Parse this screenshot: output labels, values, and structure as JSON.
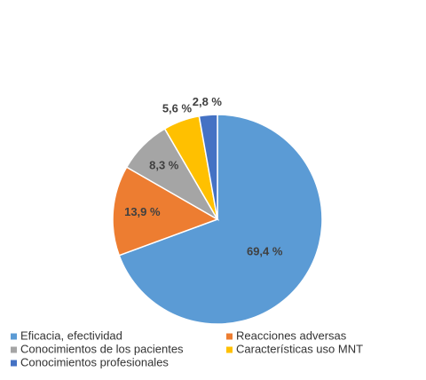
{
  "chart_data": {
    "type": "pie",
    "categories": [
      "Eficacia, efectividad",
      "Reacciones adversas",
      "Conocimientos de los pacientes",
      "Características uso MNT",
      "Conocimientos profesionales"
    ],
    "values": [
      69.4,
      13.9,
      8.3,
      5.6,
      2.8
    ],
    "value_labels": [
      "69,4 %",
      "13,9 %",
      "8,3 %",
      "5,6 %",
      "2,8 %"
    ],
    "colors": [
      "#5b9bd5",
      "#ed7d31",
      "#a5a5a5",
      "#ffc000",
      "#4472c4"
    ],
    "legend": "bottom"
  }
}
